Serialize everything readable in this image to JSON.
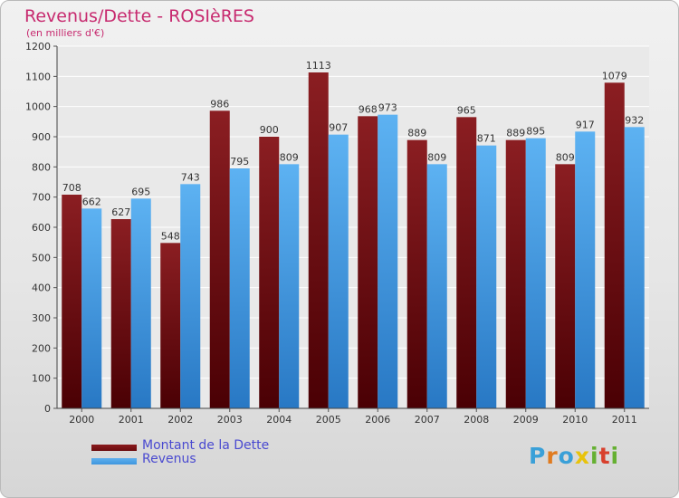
{
  "title": "Revenus/Dette - ROSIèRES",
  "subtitle": "(en milliers d'€)",
  "colors": {
    "dette": "#6b0c0f",
    "revenus": "#3f96de",
    "title": "#c72a6f",
    "legend_text": "#4a4ad0"
  },
  "legend": [
    {
      "label": "Montant de la Dette",
      "color": "#6b0c0f"
    },
    {
      "label": "Revenus",
      "color": "#3f96de"
    }
  ],
  "logo": {
    "text": "Proxiti",
    "letters": [
      "P",
      "r",
      "o",
      "x",
      "i",
      "t",
      "i"
    ],
    "letter_colors": [
      "#3aa0d8",
      "#e07b1f",
      "#3aa0d8",
      "#e8c30c",
      "#65b032",
      "#d8402d",
      "#65b032"
    ]
  },
  "chart_data": {
    "type": "bar",
    "categories": [
      "2000",
      "2001",
      "2002",
      "2003",
      "2004",
      "2005",
      "2006",
      "2007",
      "2008",
      "2009",
      "2010",
      "2011"
    ],
    "series": [
      {
        "name": "Montant de la Dette",
        "values": [
          708,
          627,
          548,
          986,
          900,
          1113,
          968,
          889,
          965,
          889,
          809,
          1079
        ]
      },
      {
        "name": "Revenus",
        "values": [
          662,
          695,
          743,
          795,
          809,
          907,
          973,
          809,
          871,
          895,
          917,
          932
        ]
      }
    ],
    "yticks": [
      0,
      100,
      200,
      300,
      400,
      500,
      600,
      700,
      800,
      900,
      1000,
      1100,
      1200
    ],
    "ylim": [
      0,
      1200
    ],
    "grid": true,
    "legend_position": "bottom-left",
    "title": "Revenus/Dette - ROSIèRES",
    "ylabel": "(en milliers d'€)"
  }
}
